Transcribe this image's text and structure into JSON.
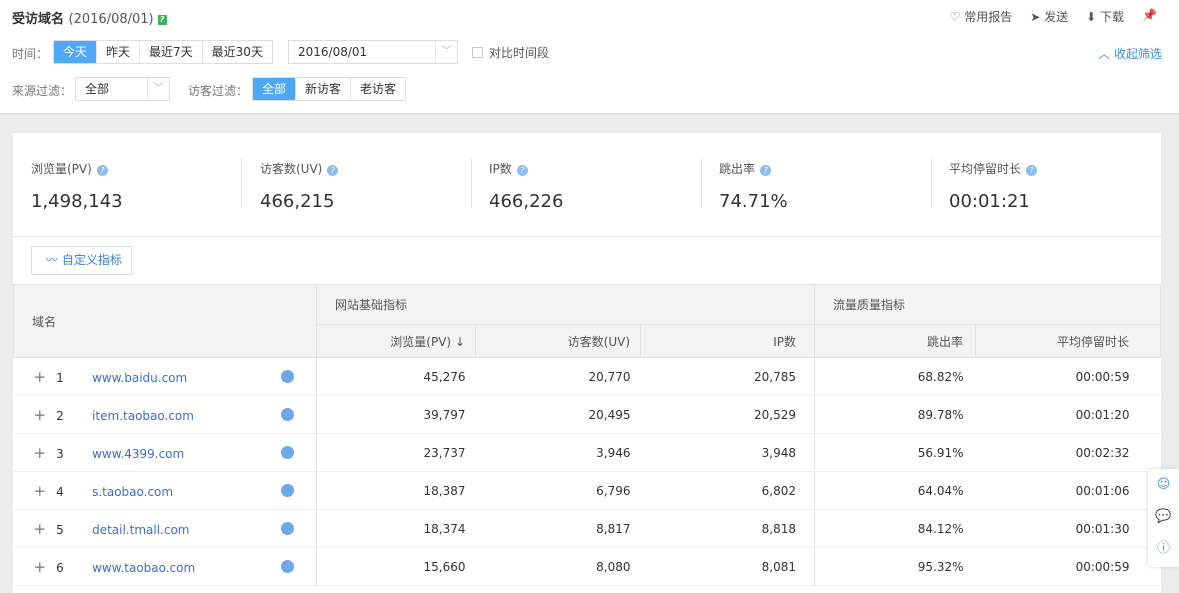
{
  "header": {
    "title": "受访域名",
    "date": "(2016/08/01)",
    "tools": [
      "常用报告",
      "发送",
      "下载"
    ],
    "collapse": "收起筛选"
  },
  "filters": {
    "time_label": "时间：",
    "time_options": [
      "今天",
      "昨天",
      "最近7天",
      "最近30天"
    ],
    "date_value": "2016/08/01",
    "compare_label": "对比时间段",
    "source_label": "来源过滤：",
    "source_value": "全部",
    "visitor_label": "访客过滤：",
    "visitor_options": [
      "全部",
      "新访客",
      "老访客"
    ]
  },
  "kpis": [
    {
      "name": "浏览量(PV)",
      "value": "1,498,143"
    },
    {
      "name": "访客数(UV)",
      "value": "466,215"
    },
    {
      "name": "IP数",
      "value": "466,226"
    },
    {
      "name": "跳出率",
      "value": "74.71%"
    },
    {
      "name": "平均停留时长",
      "value": "00:01:21"
    }
  ],
  "custom_button": "自定义指标",
  "table": {
    "col_domain": "域名",
    "group1": "网站基础指标",
    "group2": "流量质量指标",
    "cols": [
      "浏览量(PV)",
      "访客数(UV)",
      "IP数",
      "跳出率",
      "平均停留时长"
    ],
    "rows": [
      {
        "i": "1",
        "d": "www.baidu.com",
        "pv": "45,276",
        "uv": "20,770",
        "ip": "20,785",
        "br": "68.82%",
        "t": "00:00:59"
      },
      {
        "i": "2",
        "d": "item.taobao.com",
        "pv": "39,797",
        "uv": "20,495",
        "ip": "20,529",
        "br": "89.78%",
        "t": "00:01:20"
      },
      {
        "i": "3",
        "d": "www.4399.com",
        "pv": "23,737",
        "uv": "3,946",
        "ip": "3,948",
        "br": "56.91%",
        "t": "00:02:32"
      },
      {
        "i": "4",
        "d": "s.taobao.com",
        "pv": "18,387",
        "uv": "6,796",
        "ip": "6,802",
        "br": "64.04%",
        "t": "00:01:06"
      },
      {
        "i": "5",
        "d": "detail.tmall.com",
        "pv": "18,374",
        "uv": "8,817",
        "ip": "8,818",
        "br": "84.12%",
        "t": "00:01:30"
      },
      {
        "i": "6",
        "d": "www.taobao.com",
        "pv": "15,660",
        "uv": "8,080",
        "ip": "8,081",
        "br": "95.32%",
        "t": "00:00:59"
      }
    ]
  }
}
